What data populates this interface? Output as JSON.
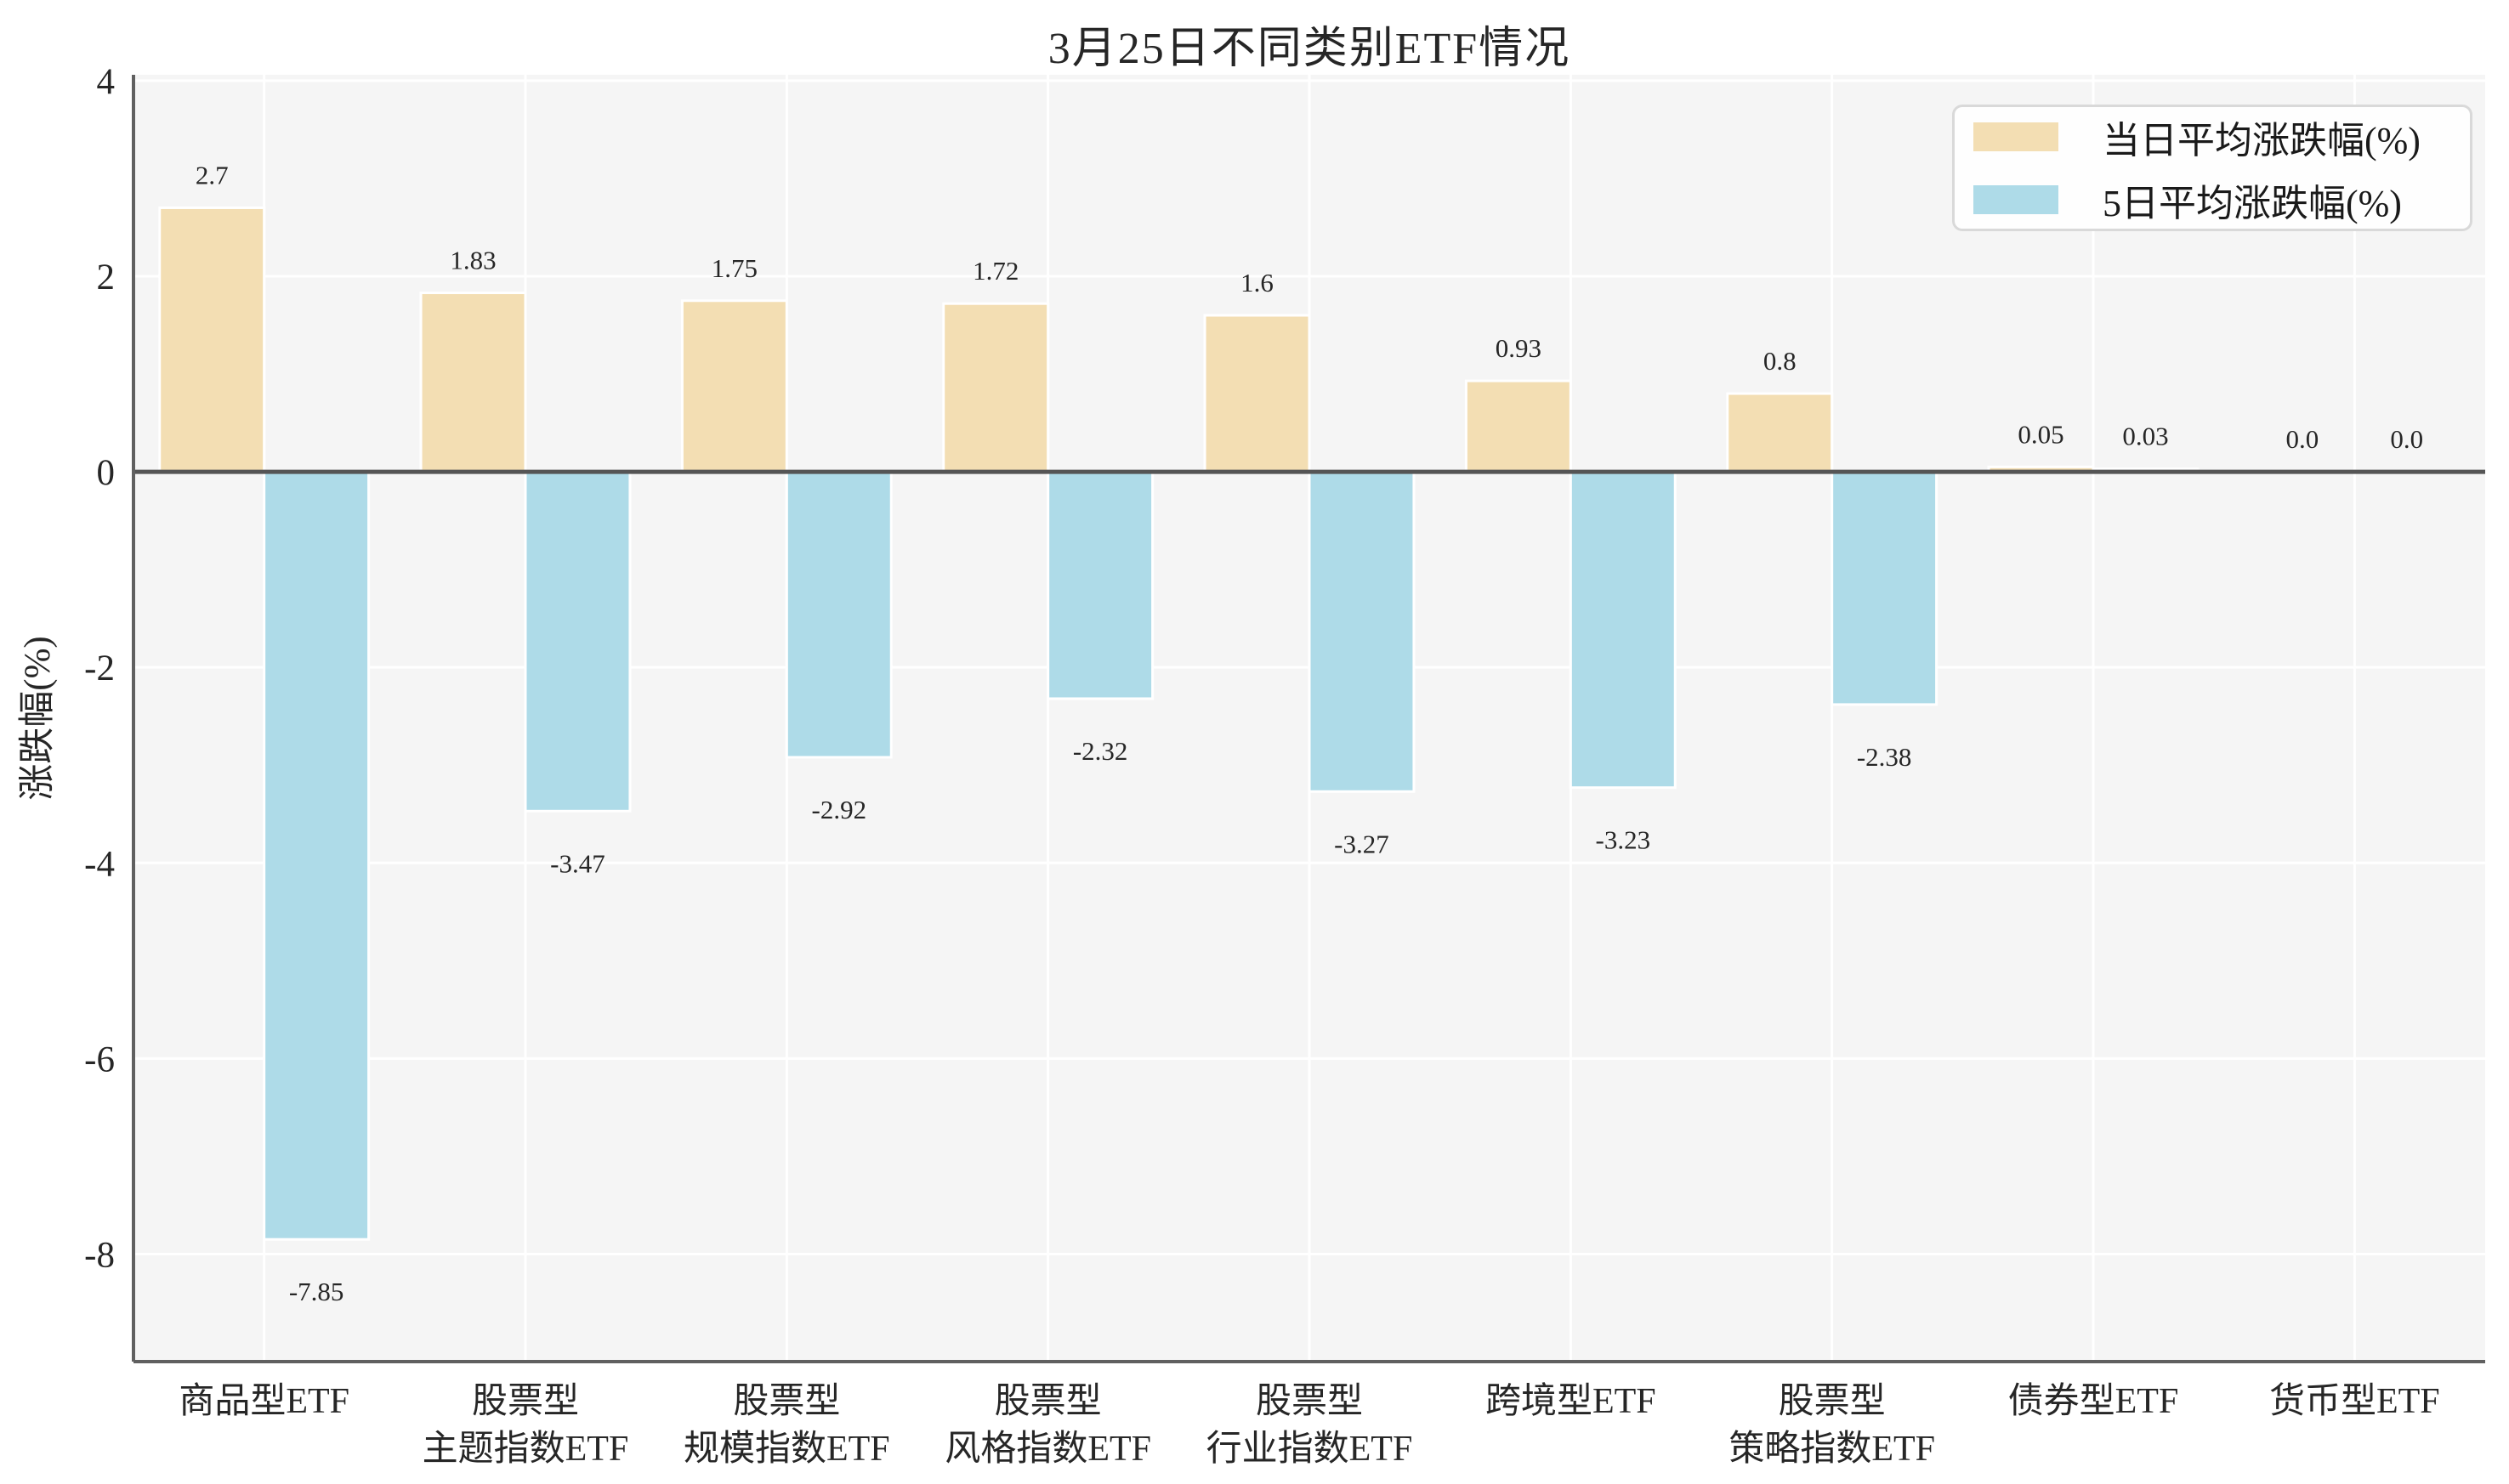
{
  "chart_data": {
    "type": "bar",
    "title": "3月25日不同类别ETF情况",
    "xlabel": "",
    "ylabel": "涨跌幅(%)",
    "categories": [
      "商品型ETF",
      "股票型\n主题指数ETF",
      "股票型\n规模指数ETF",
      "股票型\n风格指数ETF",
      "股票型\n行业指数ETF",
      "跨境型ETF",
      "股票型\n策略指数ETF",
      "债券型ETF",
      "货币型ETF"
    ],
    "series": [
      {
        "name": "当日平均涨跌幅(%)",
        "color": "#f3deb3",
        "values": [
          2.7,
          1.83,
          1.75,
          1.72,
          1.6,
          0.93,
          0.8,
          0.05,
          0.0
        ],
        "labels": [
          "2.7",
          "1.83",
          "1.75",
          "1.72",
          "1.6",
          "0.93",
          "0.8",
          "0.05",
          "0.0"
        ]
      },
      {
        "name": "5日平均涨跌幅(%)",
        "color": "#aedbe8",
        "values": [
          -7.85,
          -3.47,
          -2.92,
          -2.32,
          -3.27,
          -3.23,
          -2.38,
          0.03,
          0.0
        ],
        "labels": [
          "-7.85",
          "-3.47",
          "-2.92",
          "-2.32",
          "-3.27",
          "-3.23",
          "-2.38",
          "0.03",
          "0.0"
        ]
      }
    ],
    "yticks": [
      4,
      2,
      0,
      -2,
      -4,
      -6,
      -8
    ],
    "ylim": [
      -9.1,
      4.06
    ],
    "grid": true,
    "legend_position": "upper right"
  },
  "style_colors": {
    "plot_background": "#f5f5f5",
    "gridline": "#ffffff",
    "spine": "#606060",
    "zero_line": "#555555",
    "bar_edge": "#ffffff",
    "text": "#262626"
  }
}
